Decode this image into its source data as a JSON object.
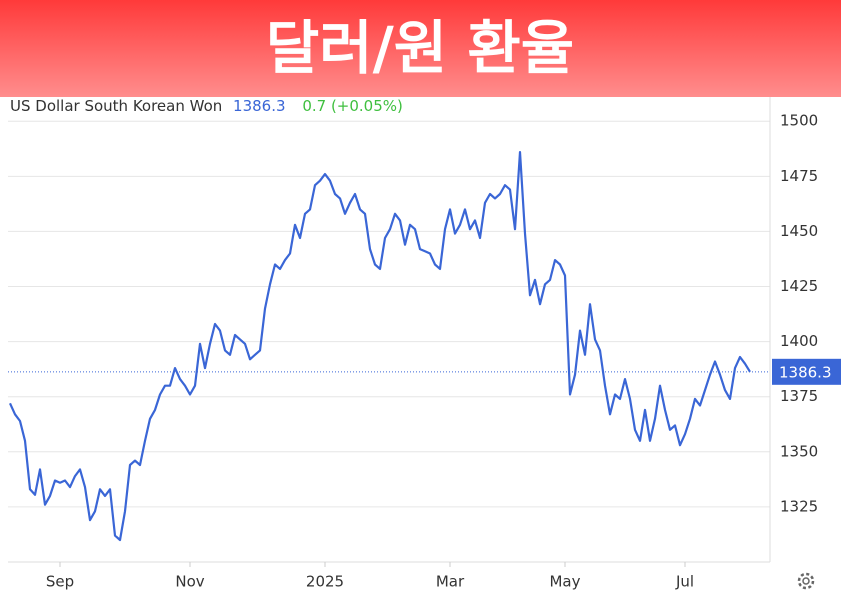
{
  "chart_data": {
    "type": "line",
    "title": "달러/원 환율",
    "subtitle": "US Dollar South Korean Won",
    "price": 1386.3,
    "change": "0.7 (+0.05%)",
    "color": "#3a66d6",
    "grid": true,
    "values": [
      1372,
      1367,
      1364,
      1355,
      1333,
      1330.5,
      1342,
      1326,
      1330,
      1337,
      1336,
      1337,
      1334,
      1339,
      1342,
      1334,
      1319,
      1323,
      1333,
      1330,
      1333,
      1312,
      1310,
      1323,
      1344,
      1346,
      1344,
      1355,
      1365,
      1369,
      1376,
      1380,
      1380,
      1388,
      1383,
      1380,
      1376,
      1380,
      1399,
      1388,
      1399,
      1408,
      1405,
      1396,
      1394,
      1403,
      1401,
      1399,
      1392,
      1394,
      1396,
      1415,
      1426,
      1435,
      1433,
      1437,
      1440,
      1453,
      1447,
      1458,
      1460,
      1471,
      1473,
      1476,
      1473,
      1467,
      1465,
      1458,
      1463,
      1467,
      1460,
      1458,
      1442,
      1435,
      1433,
      1447,
      1451,
      1458,
      1455,
      1444,
      1453,
      1451,
      1442,
      1441,
      1440,
      1435,
      1433,
      1451,
      1460,
      1449,
      1453,
      1460,
      1451,
      1455,
      1447,
      1463,
      1467,
      1465,
      1467,
      1471,
      1469,
      1451,
      1486,
      1449,
      1421,
      1428,
      1417,
      1426,
      1428,
      1437,
      1435,
      1430,
      1376,
      1385,
      1405,
      1394,
      1417,
      1401,
      1396,
      1380,
      1367,
      1376,
      1374,
      1383,
      1374,
      1360,
      1355,
      1369,
      1355,
      1365,
      1380,
      1369,
      1360,
      1362,
      1353,
      1358,
      1365,
      1374,
      1371,
      1378,
      1385,
      1391,
      1385,
      1378,
      1374,
      1388,
      1393,
      1390,
      1386.3
    ],
    "xlim": [
      -0.4,
      152
    ],
    "xticks": [
      {
        "value": 10,
        "label": "Sep"
      },
      {
        "value": 36,
        "label": "Nov"
      },
      {
        "value": 63,
        "label": "2025"
      },
      {
        "value": 88,
        "label": "Mar"
      },
      {
        "value": 111,
        "label": "May"
      },
      {
        "value": 135,
        "label": "Jul"
      }
    ],
    "ylim": [
      1300,
      1511
    ],
    "yticks": [
      1325,
      1350,
      1375,
      1400,
      1425,
      1450,
      1475,
      1500
    ]
  }
}
